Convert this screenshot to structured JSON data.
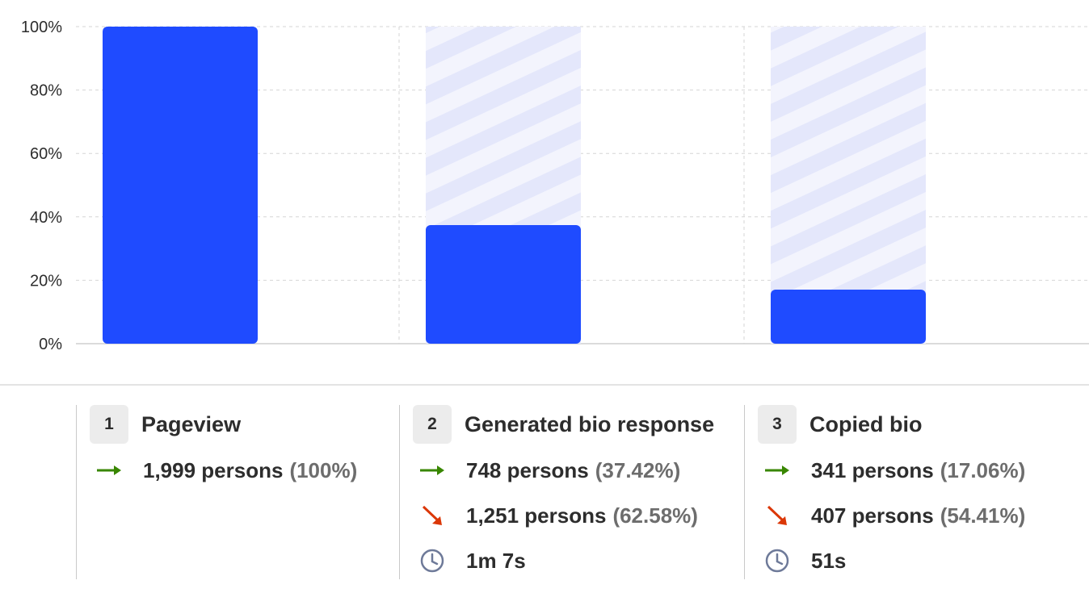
{
  "chart_data": {
    "type": "bar",
    "categories": [
      "Pageview",
      "Generated bio response",
      "Copied bio"
    ],
    "values": [
      100,
      37.42,
      17.06
    ],
    "ylim": [
      0,
      100
    ],
    "yticks": [
      "0%",
      "20%",
      "40%",
      "60%",
      "80%",
      "100%"
    ],
    "ytick_values": [
      0,
      20,
      40,
      60,
      80,
      100
    ],
    "grid": true,
    "colors": {
      "bar": "#1f4bff",
      "dropoff_stripe": "#e4e7fb",
      "dropoff_bg": "#f3f4fd"
    }
  },
  "steps": [
    {
      "number": "1",
      "name": "Pageview",
      "converted": {
        "persons": "1,999 persons",
        "pct": "(100%)"
      }
    },
    {
      "number": "2",
      "name": "Generated bio response",
      "converted": {
        "persons": "748 persons",
        "pct": "(37.42%)"
      },
      "dropped": {
        "persons": "1,251 persons",
        "pct": "(62.58%)"
      },
      "time": "1m 7s"
    },
    {
      "number": "3",
      "name": "Copied bio",
      "converted": {
        "persons": "341 persons",
        "pct": "(17.06%)"
      },
      "dropped": {
        "persons": "407 persons",
        "pct": "(54.41%)"
      },
      "time": "51s"
    }
  ],
  "icons": {
    "converted": "arrow-right-icon",
    "dropped": "arrow-down-right-icon",
    "time": "clock-icon"
  },
  "icon_colors": {
    "converted": "#388600",
    "dropped": "#db3707",
    "time": "#6e7a99"
  }
}
